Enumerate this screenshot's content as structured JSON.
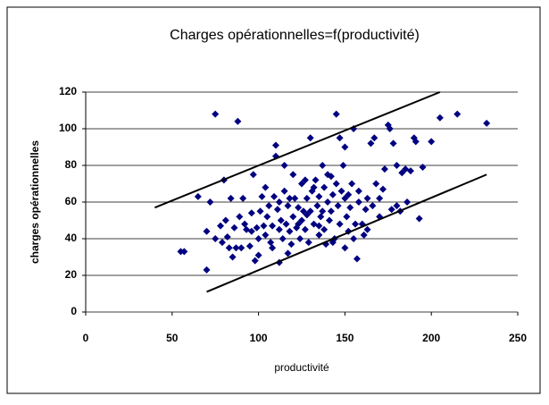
{
  "chart_data": {
    "type": "scatter",
    "title": "Charges opérationnelles=f(productivité)",
    "xlabel": "productivité",
    "ylabel": "charges opérationnelles",
    "color": "#000080",
    "x": [
      55,
      65,
      70,
      70,
      72,
      75,
      78,
      79,
      80,
      81,
      82,
      83,
      84,
      85,
      86,
      87,
      88,
      89,
      90,
      91,
      93,
      95,
      96,
      97,
      98,
      99,
      100,
      100,
      101,
      102,
      103,
      104,
      105,
      106,
      107,
      108,
      109,
      110,
      110,
      111,
      112,
      112,
      113,
      114,
      115,
      115,
      116,
      117,
      118,
      119,
      120,
      120,
      121,
      122,
      123,
      124,
      125,
      125,
      126,
      127,
      128,
      129,
      130,
      130,
      131,
      132,
      133,
      134,
      135,
      135,
      136,
      137,
      138,
      138,
      139,
      140,
      140,
      141,
      142,
      143,
      144,
      145,
      145,
      146,
      147,
      148,
      149,
      150,
      150,
      151,
      152,
      153,
      154,
      155,
      155,
      156,
      157,
      158,
      160,
      161,
      162,
      163,
      165,
      166,
      167,
      168,
      170,
      172,
      173,
      175,
      176,
      177,
      178,
      180,
      182,
      183,
      185,
      186,
      188,
      190,
      191,
      193,
      195,
      200,
      205,
      215,
      232,
      57,
      75,
      92,
      104,
      108,
      118,
      127,
      132,
      137,
      142,
      147,
      152,
      158,
      163,
      170,
      180,
      150,
      143,
      117,
      123,
      135,
      128,
      112,
      96
    ],
    "values": [
      33,
      63,
      44,
      23,
      60,
      108,
      47,
      38,
      72,
      50,
      41,
      35,
      62,
      30,
      46,
      35,
      104,
      52,
      35,
      62,
      45,
      36,
      44,
      75,
      28,
      46,
      40,
      31,
      55,
      63,
      47,
      42,
      52,
      58,
      38,
      47,
      63,
      85,
      91,
      56,
      45,
      27,
      50,
      40,
      66,
      80,
      48,
      58,
      44,
      37,
      52,
      75,
      62,
      46,
      57,
      40,
      70,
      50,
      55,
      45,
      62,
      38,
      95,
      55,
      66,
      48,
      72,
      58,
      42,
      63,
      52,
      80,
      45,
      68,
      37,
      60,
      75,
      50,
      55,
      64,
      40,
      108,
      70,
      58,
      48,
      66,
      80,
      62,
      90,
      52,
      44,
      57,
      70,
      100,
      40,
      48,
      29,
      66,
      48,
      42,
      56,
      62,
      92,
      58,
      95,
      70,
      62,
      67,
      78,
      102,
      100,
      56,
      92,
      58,
      55,
      76,
      78,
      60,
      77,
      95,
      93,
      51,
      79,
      93,
      106,
      108,
      103,
      33,
      40,
      48,
      68,
      35,
      62,
      72,
      68,
      55,
      74,
      95,
      64,
      60,
      45,
      52,
      80,
      35,
      38,
      32,
      48,
      47,
      53,
      60,
      54
    ],
    "lines": [
      {
        "x": [
          40,
          205
        ],
        "y": [
          57,
          120
        ],
        "color": "#000000"
      },
      {
        "x": [
          70,
          232
        ],
        "y": [
          11,
          75
        ],
        "color": "#000000"
      }
    ],
    "xlim": [
      0,
      250
    ],
    "xticks": [
      0,
      50,
      100,
      150,
      200,
      250
    ],
    "ylim": [
      0,
      120
    ],
    "yticks": [
      0,
      20,
      40,
      60,
      80,
      100,
      120
    ],
    "grid": true
  }
}
